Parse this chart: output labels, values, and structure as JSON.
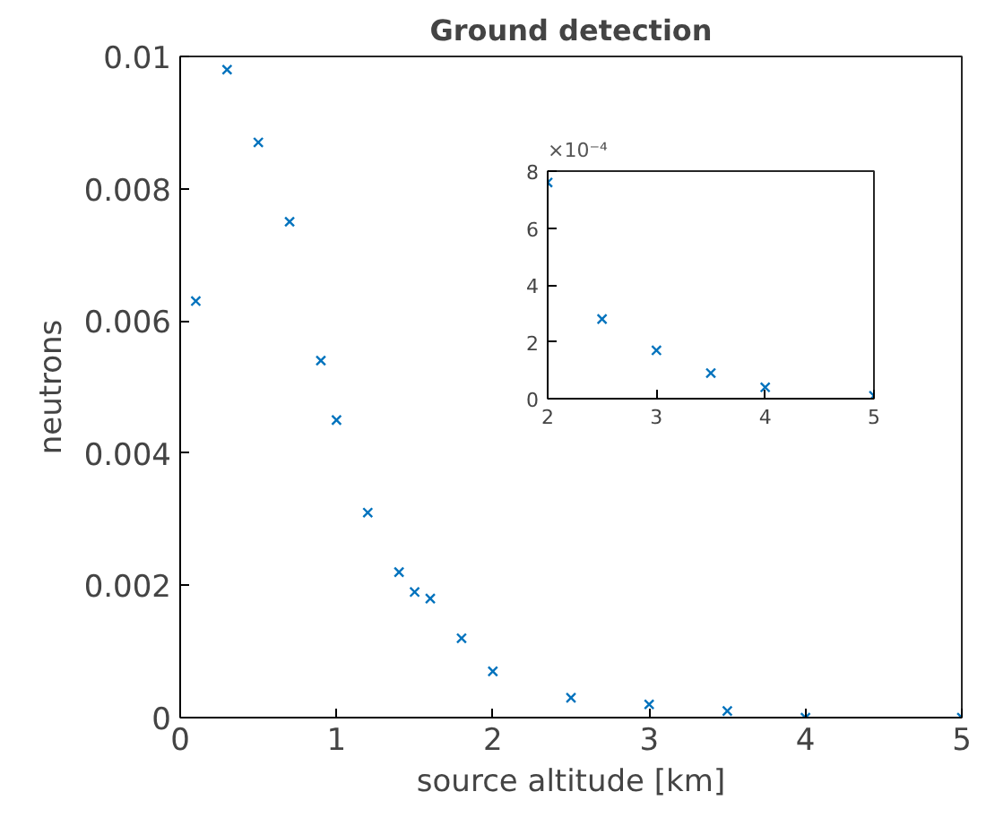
{
  "chart_data": [
    {
      "type": "scatter",
      "title": "Ground detection",
      "xlabel": "source altitude [km]",
      "ylabel": "neutrons",
      "x": [
        0.1,
        0.3,
        0.5,
        0.7,
        0.9,
        1.0,
        1.2,
        1.4,
        1.5,
        1.6,
        1.8,
        2.0,
        2.5,
        3.0,
        3.5,
        4.0,
        5.0
      ],
      "series": [
        {
          "color": "#0072bd",
          "values": [
            0.0063,
            0.0098,
            0.0087,
            0.0075,
            0.0054,
            0.0045,
            0.0031,
            0.0022,
            0.0019,
            0.0018,
            0.0012,
            0.0007,
            0.0003,
            0.0002,
            0.0001,
            0,
            0
          ]
        }
      ],
      "xlim": [
        0,
        5
      ],
      "ylim": [
        0,
        0.01
      ],
      "xticks": [
        0,
        1,
        2,
        3,
        4,
        5
      ],
      "yticks": [
        0,
        0.002,
        0.004,
        0.006,
        0.008,
        0.01
      ],
      "marker": "cross",
      "grid": false
    },
    {
      "type": "scatter",
      "annotations": [
        "×10⁻⁴"
      ],
      "x": [
        2.0,
        2.5,
        3.0,
        3.5,
        4.0,
        5.0
      ],
      "series": [
        {
          "color": "#0072bd",
          "values": [
            7.6,
            2.8,
            1.7,
            0.9,
            0.4,
            0.1
          ]
        }
      ],
      "xlim": [
        2,
        5
      ],
      "ylim": [
        0,
        8
      ],
      "xticks": [
        2,
        3,
        4,
        5
      ],
      "yticks": [
        0,
        2,
        4,
        6,
        8
      ],
      "marker": "cross",
      "grid": false
    }
  ]
}
